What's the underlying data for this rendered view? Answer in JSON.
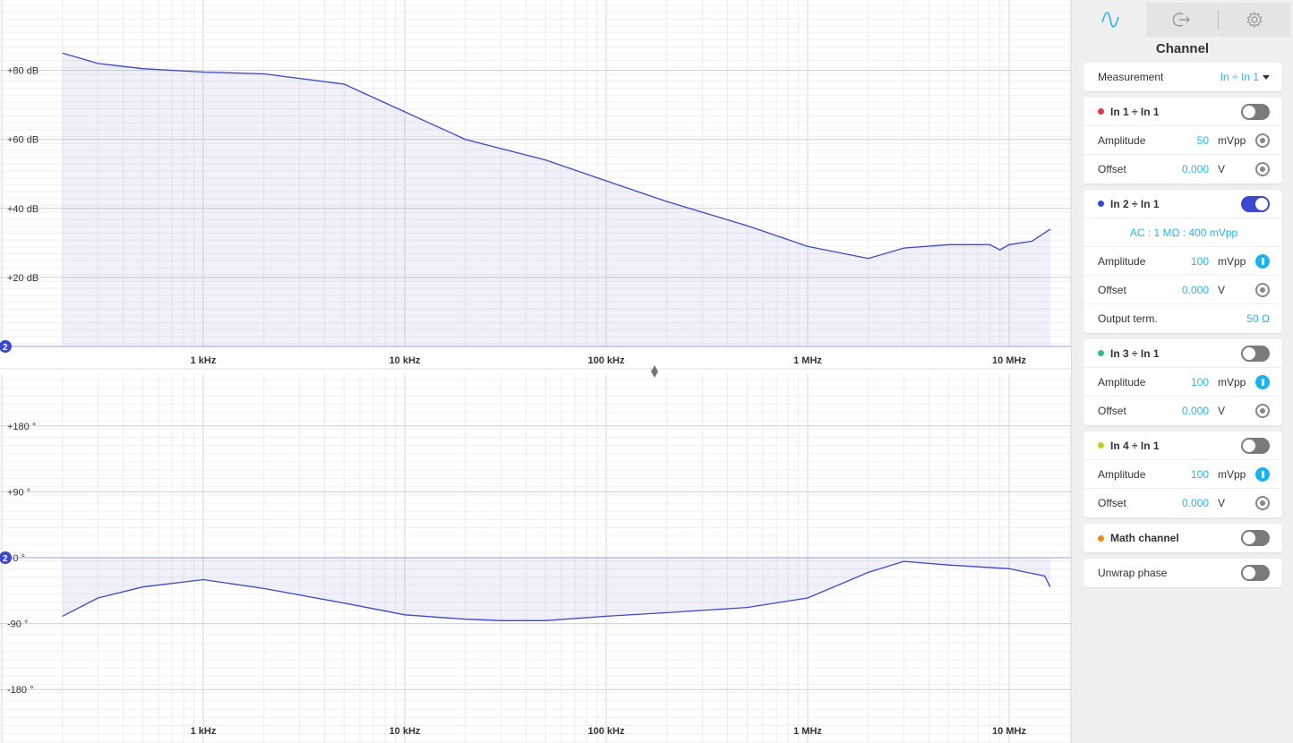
{
  "chart_data": [
    {
      "type": "line",
      "title": "",
      "xlabel": "",
      "ylabel": "",
      "x_scale": "log",
      "x_ticks": [
        "1 kHz",
        "10 kHz",
        "100 kHz",
        "1 MHz",
        "10 MHz"
      ],
      "y_ticks": [
        "+80 dB",
        "+60 dB",
        "+40 dB",
        "+20 dB"
      ],
      "ylim": [
        0,
        88
      ],
      "marker_label": "2",
      "series": [
        {
          "color": "#3a47d0",
          "x": [
            200,
            300,
            500,
            1000,
            2000,
            5000,
            10000,
            20000,
            50000,
            100000,
            200000,
            500000,
            1000000,
            2000000,
            3000000,
            5000000,
            8000000,
            9000000,
            10000000,
            13000000,
            16000000
          ],
          "y": [
            85,
            82,
            80.5,
            79.5,
            79,
            76,
            68,
            60,
            54,
            48,
            42,
            35,
            29,
            25.5,
            28.5,
            29.5,
            29.5,
            28,
            29.5,
            30.5,
            34
          ]
        }
      ]
    },
    {
      "type": "line",
      "title": "",
      "xlabel": "",
      "ylabel": "",
      "x_scale": "log",
      "x_ticks": [
        "1 kHz",
        "10 kHz",
        "100 kHz",
        "1 MHz",
        "10 MHz"
      ],
      "y_ticks": [
        "+180 °",
        "+90 °",
        "+0 °",
        "-90 °",
        "-180 °"
      ],
      "ylim": [
        -225,
        225
      ],
      "marker_label": "2",
      "series": [
        {
          "color": "#3a47d0",
          "x": [
            200,
            300,
            500,
            1000,
            2000,
            5000,
            10000,
            20000,
            30000,
            50000,
            100000,
            200000,
            500000,
            1000000,
            2000000,
            3000000,
            5000000,
            10000000,
            15000000,
            16000000
          ],
          "y": [
            -80,
            -55,
            -40,
            -30,
            -42,
            -62,
            -78,
            -84,
            -86,
            -86,
            -80,
            -75,
            -68,
            -55,
            -20,
            -5,
            -10,
            -15,
            -25,
            -40
          ]
        }
      ]
    }
  ],
  "panel": {
    "tabs": [
      {
        "icon": "sine-wave-icon",
        "active": true
      },
      {
        "icon": "export-icon",
        "active": false
      },
      {
        "icon": "gear-icon",
        "active": false
      }
    ],
    "title": "Channel",
    "measurement": {
      "label": "Measurement",
      "value": "In ÷ In 1"
    },
    "channels": [
      {
        "name": "In 1 ÷ In 1",
        "color": "#e8344e",
        "on": false,
        "amplitude": {
          "label": "Amplitude",
          "value": "50",
          "unit": "mVpp"
        },
        "offset": {
          "label": "Offset",
          "value": "0.000",
          "unit": "V"
        }
      },
      {
        "name": "In 2 ÷ In 1",
        "color": "#3a47d0",
        "on": true,
        "info": "AC : 1 MΩ : 400 mVpp",
        "amplitude": {
          "label": "Amplitude",
          "value": "100",
          "unit": "mVpp"
        },
        "offset": {
          "label": "Offset",
          "value": "0.000",
          "unit": "V"
        },
        "output_term": {
          "label": "Output term.",
          "value": "50 Ω"
        }
      },
      {
        "name": "In 3 ÷ In 1",
        "color": "#2dbf8f",
        "on": false,
        "amplitude": {
          "label": "Amplitude",
          "value": "100",
          "unit": "mVpp"
        },
        "offset": {
          "label": "Offset",
          "value": "0.000",
          "unit": "V"
        }
      },
      {
        "name": "In 4 ÷ In 1",
        "color": "#c8cc2a",
        "on": false,
        "amplitude": {
          "label": "Amplitude",
          "value": "100",
          "unit": "mVpp"
        },
        "offset": {
          "label": "Offset",
          "value": "0.000",
          "unit": "V"
        }
      }
    ],
    "math_channel": {
      "name": "Math channel",
      "color": "#f08a1c",
      "on": false
    },
    "unwrap_phase": {
      "name": "Unwrap phase",
      "on": false
    }
  }
}
